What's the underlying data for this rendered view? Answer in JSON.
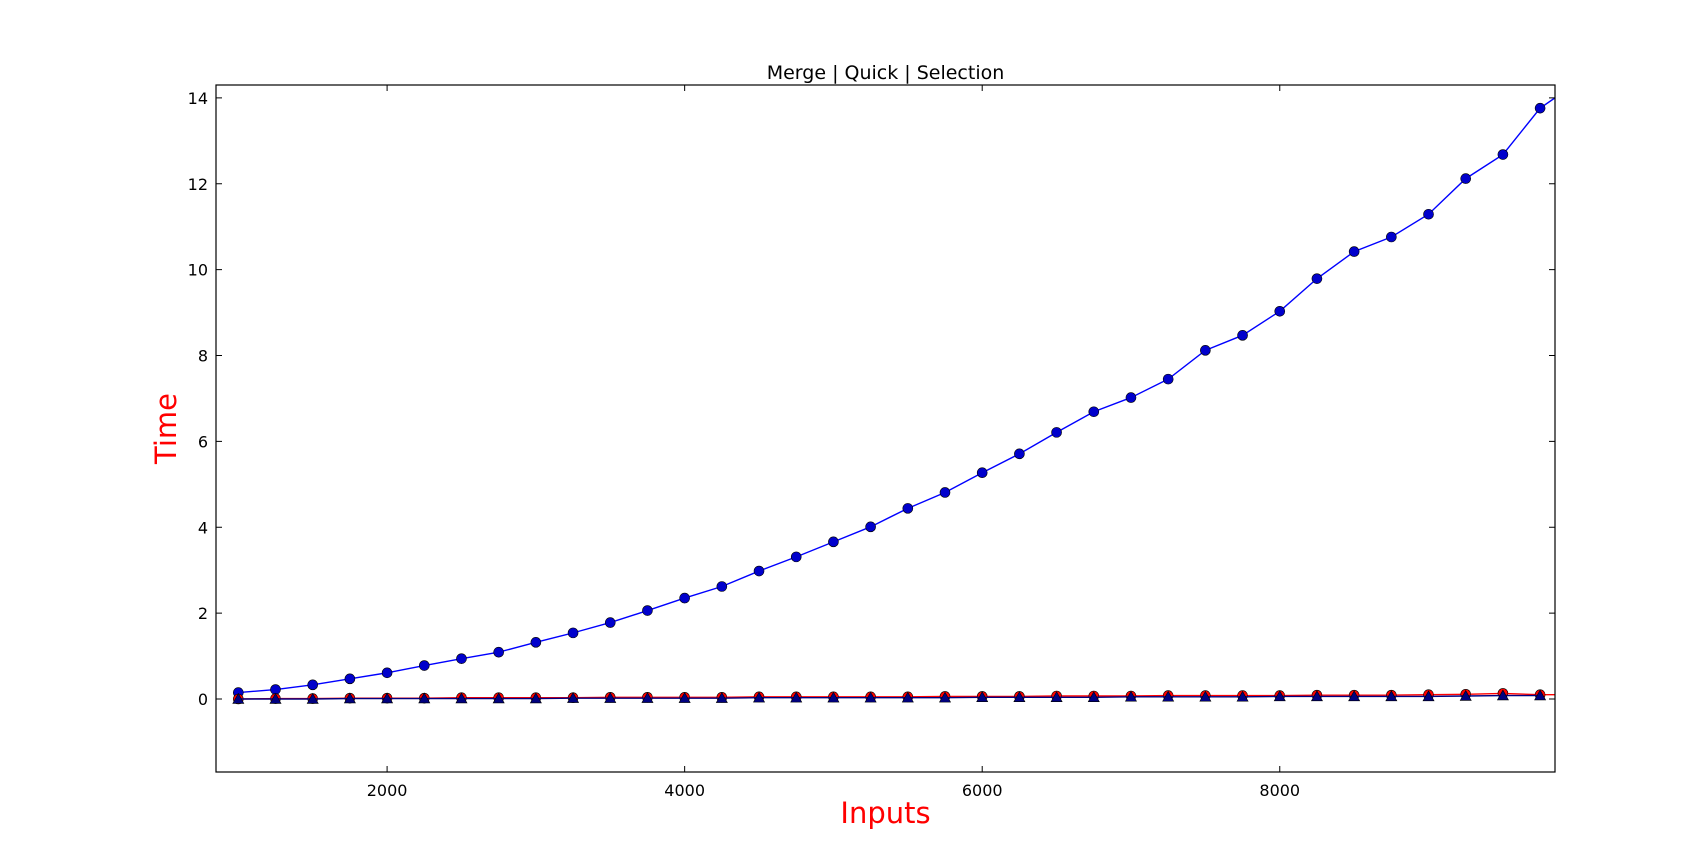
{
  "chart_data": {
    "type": "line",
    "title": "Merge | Quick | Selection",
    "xlabel": "Inputs",
    "ylabel": "Time",
    "label_color": "#ff0000",
    "xlim": [
      850,
      9850
    ],
    "ylim": [
      -1.7,
      14.3
    ],
    "xticks": [
      2000,
      4000,
      6000,
      8000
    ],
    "yticks": [
      0,
      2,
      4,
      6,
      8,
      10,
      12,
      14
    ],
    "grid": false,
    "x": [
      1000,
      1250,
      1500,
      1750,
      2000,
      2250,
      2500,
      2750,
      3000,
      3250,
      3500,
      3750,
      4000,
      4250,
      4500,
      4750,
      5000,
      5250,
      5500,
      5750,
      6000,
      6250,
      6500,
      6750,
      7000,
      7250,
      7500,
      7750,
      8000,
      8250,
      8500,
      8750,
      9000,
      9250,
      9500,
      9750
    ],
    "series": [
      {
        "color": "#0000ff",
        "marker_color": "#0000cc",
        "marker": "circle",
        "line_extends_to": [
          9850,
          14.0
        ],
        "values": [
          0.15,
          0.22,
          0.33,
          0.47,
          0.61,
          0.78,
          0.94,
          1.09,
          1.32,
          1.54,
          1.78,
          2.06,
          2.35,
          2.62,
          2.98,
          3.31,
          3.66,
          4.01,
          4.44,
          4.81,
          5.27,
          5.71,
          6.21,
          6.69,
          7.02,
          7.45,
          8.12,
          8.47,
          9.03,
          9.79,
          10.42,
          10.76,
          11.29,
          12.12,
          12.68,
          13.76
        ]
      },
      {
        "color": "#ff0000",
        "marker_color": "#ff0000",
        "marker": "circle",
        "line_extends_to": [
          9850,
          0.1
        ],
        "values": [
          0.0,
          0.01,
          0.01,
          0.02,
          0.02,
          0.02,
          0.03,
          0.03,
          0.03,
          0.03,
          0.04,
          0.04,
          0.04,
          0.04,
          0.05,
          0.05,
          0.05,
          0.05,
          0.05,
          0.06,
          0.06,
          0.06,
          0.07,
          0.07,
          0.07,
          0.08,
          0.08,
          0.08,
          0.08,
          0.09,
          0.09,
          0.09,
          0.1,
          0.11,
          0.13,
          0.1
        ]
      },
      {
        "color": "#000080",
        "marker_color": "#000080",
        "marker": "triangle",
        "values": [
          0.0,
          0.0,
          0.0,
          0.01,
          0.01,
          0.01,
          0.01,
          0.01,
          0.01,
          0.02,
          0.02,
          0.02,
          0.02,
          0.02,
          0.03,
          0.03,
          0.03,
          0.03,
          0.03,
          0.03,
          0.04,
          0.04,
          0.04,
          0.04,
          0.05,
          0.05,
          0.05,
          0.05,
          0.06,
          0.06,
          0.06,
          0.06,
          0.06,
          0.07,
          0.08,
          0.08
        ]
      }
    ]
  }
}
